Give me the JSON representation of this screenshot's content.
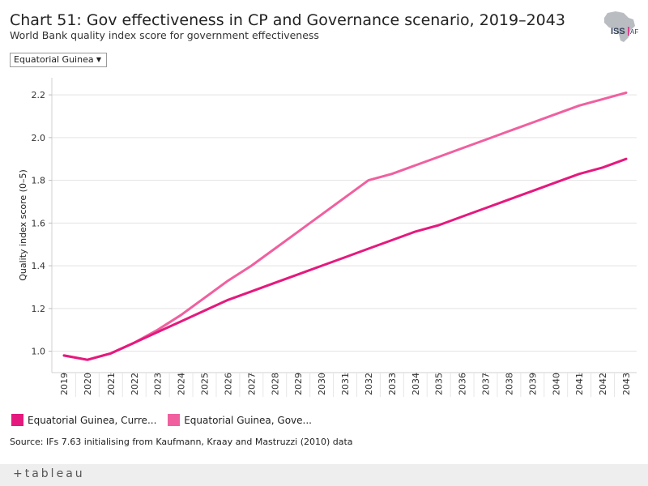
{
  "header": {
    "title": "Chart 51: Gov effectiveness in CP and Governance scenario, 2019–2043",
    "subtitle": "World Bank quality index score for government effectiveness",
    "logo_text": "ISS AFRICA"
  },
  "filter": {
    "selected": "Equatorial Guinea",
    "icon": "chevron-down-icon"
  },
  "legend": {
    "items": [
      {
        "label": "Equatorial Guinea, Curre...",
        "color": "#e5197e"
      },
      {
        "label": "Equatorial Guinea, Gove...",
        "color": "#f0609f"
      }
    ]
  },
  "source": "Source: IFs 7.63 initialising from Kaufmann, Kraay and Mastruzzi (2010) data",
  "footer": {
    "brand": "+tableau"
  },
  "chart_data": {
    "type": "line",
    "title": "Chart 51: Gov effectiveness in CP and Governance scenario, 2019–2043",
    "xlabel": "",
    "ylabel": "Quality index score (0–5)",
    "ylim": [
      0.9,
      2.28
    ],
    "yticks": [
      1.0,
      1.2,
      1.4,
      1.6,
      1.8,
      2.0,
      2.2
    ],
    "ytick_labels": [
      "1.0",
      "1.2",
      "1.4",
      "1.6",
      "1.8",
      "2.0",
      "2.2"
    ],
    "grid": true,
    "x": [
      2019,
      2020,
      2021,
      2022,
      2023,
      2024,
      2025,
      2026,
      2027,
      2028,
      2029,
      2030,
      2031,
      2032,
      2033,
      2034,
      2035,
      2036,
      2037,
      2038,
      2039,
      2040,
      2041,
      2042,
      2043
    ],
    "series": [
      {
        "name": "Equatorial Guinea, Current Path",
        "color": "#e5197e",
        "values": [
          0.98,
          0.96,
          0.99,
          1.04,
          1.09,
          1.14,
          1.19,
          1.24,
          1.28,
          1.32,
          1.36,
          1.4,
          1.44,
          1.48,
          1.52,
          1.56,
          1.59,
          1.63,
          1.67,
          1.71,
          1.75,
          1.79,
          1.83,
          1.86,
          1.9
        ]
      },
      {
        "name": "Equatorial Guinea, Governance scenario",
        "color": "#f0609f",
        "values": [
          0.98,
          0.96,
          0.99,
          1.04,
          1.1,
          1.17,
          1.25,
          1.33,
          1.4,
          1.48,
          1.56,
          1.64,
          1.72,
          1.8,
          1.83,
          1.87,
          1.91,
          1.95,
          1.99,
          2.03,
          2.07,
          2.11,
          2.15,
          2.18,
          2.21
        ]
      }
    ]
  }
}
